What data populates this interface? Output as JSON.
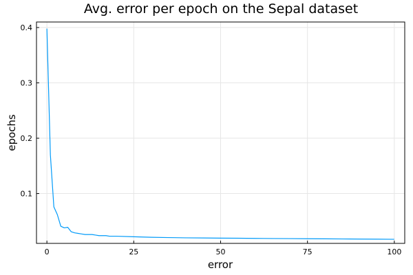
{
  "chart_data": {
    "type": "line",
    "title": "Avg. error per epoch on the Sepal dataset",
    "xlabel": "error",
    "ylabel": "epochs",
    "xlim": [
      -3,
      103
    ],
    "ylim": [
      0.01,
      0.41
    ],
    "xticks": [
      0,
      25,
      50,
      75,
      100
    ],
    "yticks": [
      0.1,
      0.2,
      0.3,
      0.4
    ],
    "xtick_labels": [
      "0",
      "25",
      "50",
      "75",
      "100"
    ],
    "ytick_labels": [
      "0.1",
      "0.2",
      "0.3",
      "0.4"
    ],
    "grid": true,
    "series": [
      {
        "color": "#009af9",
        "x": [
          0,
          1,
          2,
          3,
          4,
          5,
          6,
          7,
          8,
          9,
          10,
          11,
          12,
          13,
          14,
          15,
          16,
          17,
          18,
          19,
          20,
          25,
          30,
          35,
          40,
          45,
          50,
          55,
          60,
          65,
          70,
          75,
          80,
          85,
          90,
          95,
          100
        ],
        "y": [
          0.398,
          0.17,
          0.076,
          0.062,
          0.041,
          0.038,
          0.039,
          0.031,
          0.029,
          0.028,
          0.027,
          0.026,
          0.026,
          0.026,
          0.025,
          0.024,
          0.024,
          0.024,
          0.023,
          0.023,
          0.023,
          0.022,
          0.021,
          0.0205,
          0.02,
          0.0198,
          0.0195,
          0.0193,
          0.019,
          0.0188,
          0.0186,
          0.0184,
          0.0182,
          0.018,
          0.0178,
          0.0176,
          0.0174
        ]
      }
    ]
  }
}
